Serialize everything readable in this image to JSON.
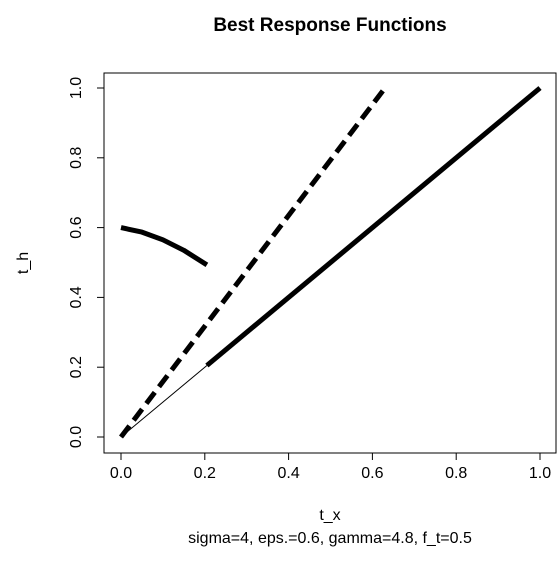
{
  "chart_data": {
    "type": "line",
    "title": "Best Response Functions",
    "xlabel": "t_x",
    "ylabel": "t_h",
    "caption": "sigma=4, eps.=0.6, gamma=4.8, f_t=0.5",
    "xlim": [
      0,
      1
    ],
    "ylim": [
      0,
      1
    ],
    "xticks": [
      0,
      0.2,
      0.4,
      0.6,
      0.8,
      1
    ],
    "yticks": [
      0,
      0.2,
      0.4,
      0.6,
      0.8,
      1
    ],
    "xtick_labels": [
      "0.0",
      "0.2",
      "0.4",
      "0.6",
      "0.8",
      "1.0"
    ],
    "ytick_labels": [
      "0.0",
      "0.2",
      "0.4",
      "0.6",
      "0.8",
      "1.0"
    ],
    "grid": false,
    "legend": "none",
    "series": [
      {
        "style": "thin-solid",
        "x": [
          0,
          0.205
        ],
        "y": [
          0,
          0.205
        ]
      },
      {
        "style": "thick-solid",
        "x": [
          0.205,
          1.0
        ],
        "y": [
          0.205,
          1.0
        ]
      },
      {
        "style": "thick-solid",
        "x": [
          0,
          0.05,
          0.1,
          0.15,
          0.205
        ],
        "y": [
          0.6,
          0.587,
          0.565,
          0.535,
          0.493
        ]
      },
      {
        "style": "thick-dashed",
        "x": [
          0,
          0.63
        ],
        "y": [
          0,
          1.0
        ]
      }
    ]
  }
}
